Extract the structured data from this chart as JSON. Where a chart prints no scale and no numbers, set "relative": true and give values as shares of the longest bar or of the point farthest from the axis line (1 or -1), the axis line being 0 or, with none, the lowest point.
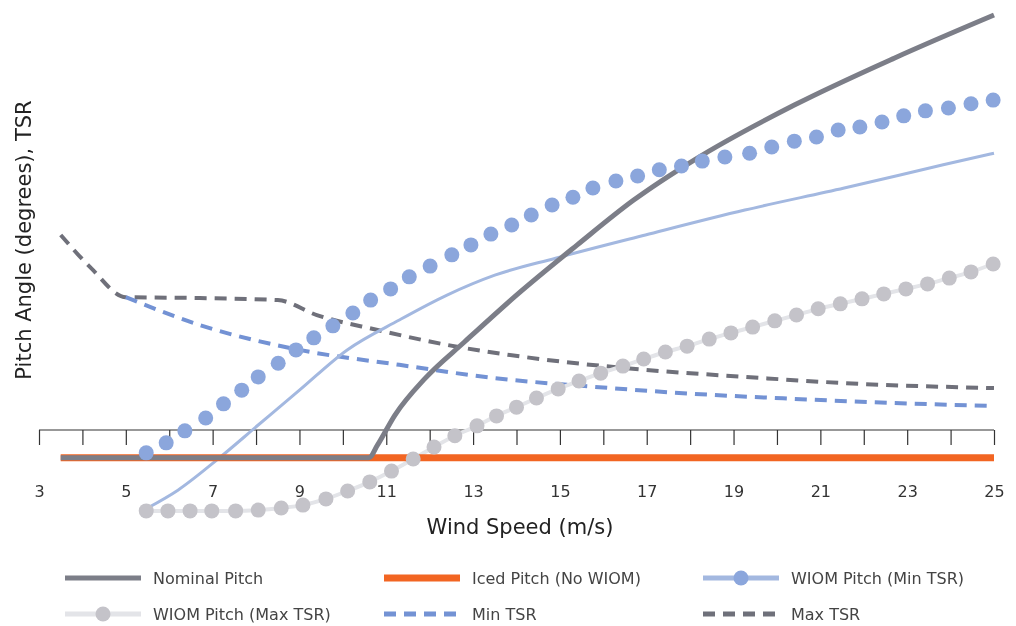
{
  "chart_data": {
    "type": "line",
    "relative": true,
    "xlabel": "Wind Speed (m/s)",
    "ylabel": "Pitch Angle (degrees), TSR",
    "xlim": [
      3,
      25
    ],
    "legend": "bottom",
    "ref_lines": [
      {
        "axis": "y",
        "value": 0,
        "color": "#333333"
      }
    ],
    "xticks": [
      3,
      {
        "value": 4,
        "label": null
      },
      5,
      {
        "value": 6,
        "label": null
      },
      7,
      {
        "value": 8,
        "label": null
      },
      9,
      {
        "value": 10,
        "label": null
      },
      11,
      {
        "value": 12,
        "label": null
      },
      13,
      {
        "value": 14,
        "label": null
      },
      15,
      {
        "value": 16,
        "label": null
      },
      17,
      {
        "value": 18,
        "label": null
      },
      19,
      {
        "value": 20,
        "label": null
      },
      21,
      {
        "value": 22,
        "label": null
      },
      23,
      {
        "value": 24,
        "label": null
      },
      25
    ],
    "series": [
      {
        "name": "Nominal Pitch",
        "color": "#7c7e88",
        "line_style": "solid",
        "x": [
          3.5,
          10.6,
          10.8,
          11.2,
          11.9,
          12.8,
          14,
          15.4,
          16.7,
          18.1,
          20.4,
          22.7,
          25
        ],
        "values": [
          -0.067,
          -0.067,
          -0.036,
          0.036,
          0.125,
          0.212,
          0.325,
          0.446,
          0.554,
          0.651,
          0.783,
          0.896,
          1
        ]
      },
      {
        "name": "Iced Pitch (No WIOM)",
        "color": "#f26522",
        "line_style": "solid",
        "x": [
          3.5,
          25
        ],
        "values": [
          -0.067,
          -0.067
        ]
      },
      {
        "name": "WIOM Pitch (Min TSR)",
        "color": "#a3b8e0",
        "line_style": "solid",
        "x": [
          5.5,
          6.2,
          7.1,
          8.05,
          9,
          10.1,
          11.3,
          12.4,
          13.5,
          14.9,
          16.97,
          19.26,
          21.55,
          23.83,
          25
        ],
        "values": [
          -0.188,
          -0.145,
          -0.072,
          0.012,
          0.096,
          0.193,
          0.265,
          0.325,
          0.373,
          0.414,
          0.47,
          0.53,
          0.583,
          0.639,
          0.667
        ]
      },
      {
        "type": "scatter",
        "color": "#8ba6dc",
        "marker": "circle",
        "x": [
          5.47,
          5.93,
          6.36,
          6.84,
          7.25,
          7.67,
          8.05,
          8.51,
          8.92,
          9.33,
          9.77,
          10.23,
          10.64,
          11.1,
          11.53,
          12.01,
          12.51,
          12.95,
          13.41,
          13.89,
          14.34,
          14.82,
          15.3,
          15.76,
          16.29,
          16.79,
          17.29,
          17.8,
          18.28,
          18.8,
          19.37,
          19.88,
          20.4,
          20.91,
          21.41,
          21.91,
          22.42,
          22.92,
          23.42,
          23.95,
          24.47,
          24.98
        ],
        "values": [
          -0.055,
          -0.031,
          -0.002,
          0.029,
          0.063,
          0.096,
          0.128,
          0.161,
          0.193,
          0.222,
          0.251,
          0.282,
          0.313,
          0.34,
          0.369,
          0.395,
          0.422,
          0.446,
          0.472,
          0.494,
          0.518,
          0.542,
          0.561,
          0.583,
          0.6,
          0.612,
          0.627,
          0.636,
          0.648,
          0.658,
          0.667,
          0.682,
          0.696,
          0.706,
          0.723,
          0.73,
          0.742,
          0.757,
          0.769,
          0.776,
          0.786,
          0.795
        ]
      },
      {
        "name": "WIOM Pitch (Max TSR)",
        "color": "#e3e4e8",
        "line_style": "solid",
        "x": [
          5.47,
          5.97,
          6.48,
          6.98,
          7.53,
          8.05,
          8.58,
          9.08,
          9.61,
          10.11,
          10.62,
          11.12,
          11.62,
          12.1,
          12.58,
          13.09,
          13.54,
          14,
          14.46,
          14.96,
          15.44,
          15.94,
          16.45,
          16.93,
          17.43,
          17.93,
          18.44,
          18.94,
          19.44,
          19.95,
          20.45,
          20.95,
          21.46,
          21.96,
          22.46,
          22.97,
          23.47,
          23.97,
          24.47,
          24.98
        ],
        "values": [
          -0.195,
          -0.195,
          -0.195,
          -0.195,
          -0.195,
          -0.193,
          -0.188,
          -0.181,
          -0.166,
          -0.147,
          -0.125,
          -0.099,
          -0.07,
          -0.041,
          -0.014,
          0.01,
          0.034,
          0.055,
          0.077,
          0.099,
          0.118,
          0.137,
          0.154,
          0.171,
          0.188,
          0.202,
          0.219,
          0.234,
          0.248,
          0.263,
          0.277,
          0.292,
          0.304,
          0.316,
          0.328,
          0.34,
          0.352,
          0.366,
          0.381,
          0.4
        ]
      },
      {
        "type": "scatter",
        "color": "#c4c3c9",
        "marker": "circle",
        "x": [
          5.47,
          5.97,
          6.48,
          6.98,
          7.53,
          8.05,
          8.58,
          9.08,
          9.61,
          10.11,
          10.62,
          11.12,
          11.62,
          12.1,
          12.58,
          13.09,
          13.54,
          14,
          14.46,
          14.96,
          15.44,
          15.94,
          16.45,
          16.93,
          17.43,
          17.93,
          18.44,
          18.94,
          19.44,
          19.95,
          20.45,
          20.95,
          21.46,
          21.96,
          22.46,
          22.97,
          23.47,
          23.97,
          24.47,
          24.98
        ],
        "values": [
          -0.195,
          -0.195,
          -0.195,
          -0.195,
          -0.195,
          -0.193,
          -0.188,
          -0.181,
          -0.166,
          -0.147,
          -0.125,
          -0.099,
          -0.07,
          -0.041,
          -0.014,
          0.01,
          0.034,
          0.055,
          0.077,
          0.099,
          0.118,
          0.137,
          0.154,
          0.171,
          0.188,
          0.202,
          0.219,
          0.234,
          0.248,
          0.263,
          0.277,
          0.292,
          0.304,
          0.316,
          0.328,
          0.34,
          0.352,
          0.366,
          0.381,
          0.4
        ]
      },
      {
        "name": "Min TSR",
        "color": "#7392d4",
        "line_style": "dashed",
        "x": [
          5,
          6.7,
          9,
          11.3,
          13.5,
          15.8,
          18.1,
          20.4,
          22.7,
          25
        ],
        "values": [
          0.32,
          0.253,
          0.193,
          0.157,
          0.125,
          0.104,
          0.087,
          0.075,
          0.065,
          0.058
        ]
      },
      {
        "name": "Max TSR",
        "color": "#6f707a",
        "line_style": "dashed",
        "x": [
          3.5,
          4.2,
          5,
          6.7,
          8.5,
          9.4,
          10.8,
          12.4,
          14.7,
          16.97,
          19.26,
          21.55,
          25
        ],
        "values": [
          0.47,
          0.39,
          0.32,
          0.318,
          0.313,
          0.277,
          0.241,
          0.205,
          0.169,
          0.145,
          0.128,
          0.113,
          0.101
        ]
      }
    ]
  }
}
